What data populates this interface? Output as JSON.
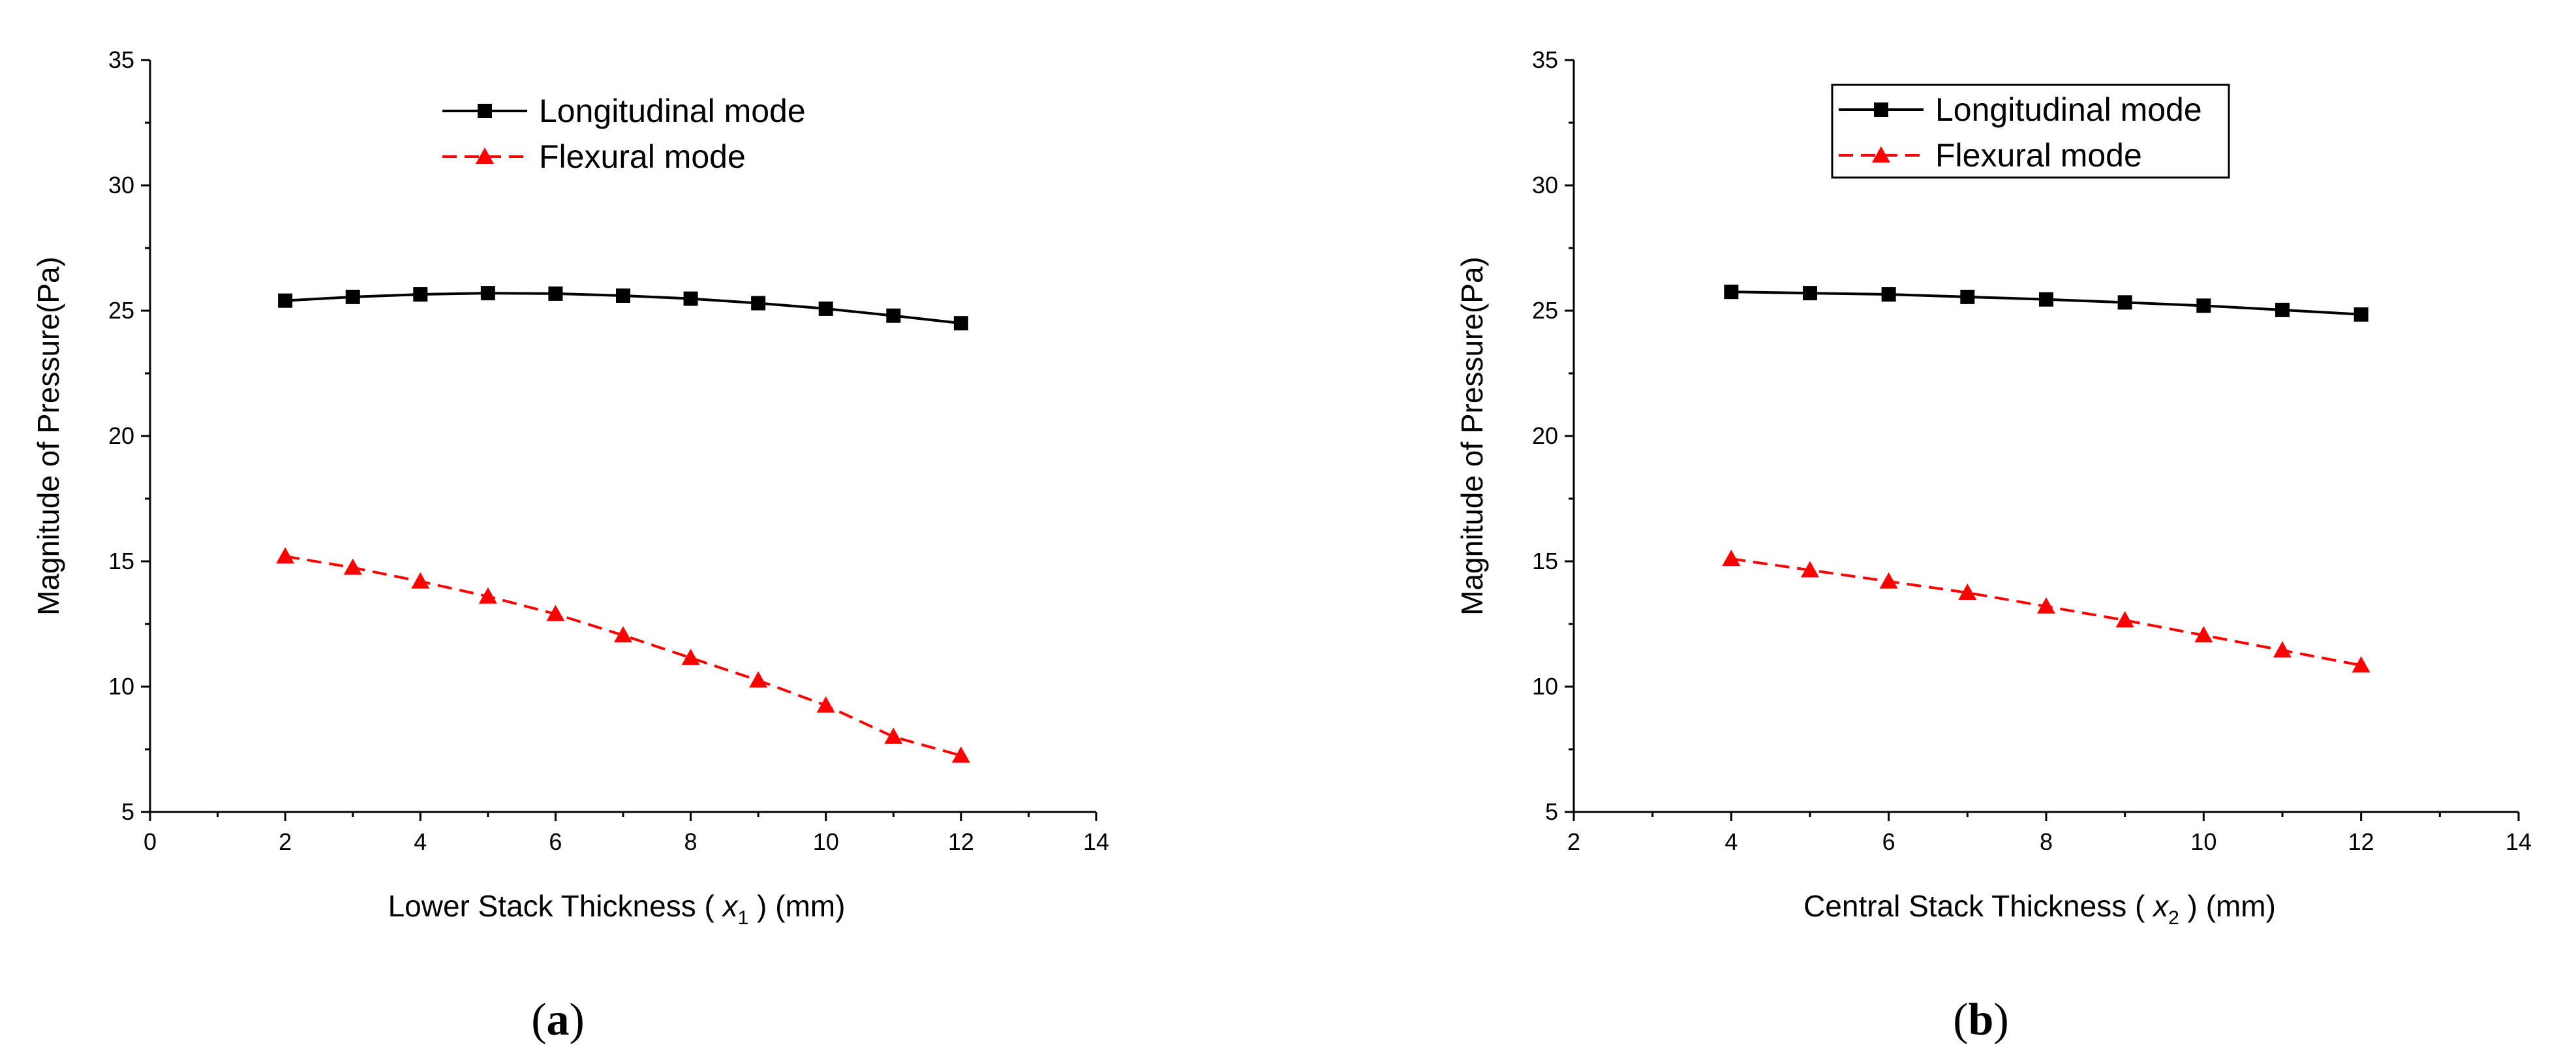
{
  "chart_data": [
    {
      "type": "line",
      "panel_label": "(a)",
      "panel_letter": "a",
      "xlabel_prefix": "Lower Stack Thickness ( ",
      "xlabel_var": "x",
      "xlabel_sub": "1",
      "xlabel_suffix": " ) (mm)",
      "ylabel": "Magnitude of Pressure(Pa)",
      "xlim": [
        0,
        14
      ],
      "ylim": [
        5,
        35
      ],
      "xticks": [
        0,
        2,
        4,
        6,
        8,
        10,
        12,
        14
      ],
      "yticks": [
        5,
        10,
        15,
        20,
        25,
        30,
        35
      ],
      "grid": false,
      "legend_position": "top-center",
      "legend_boxed": false,
      "series": [
        {
          "name": "Longitudinal mode",
          "color": "#000000",
          "marker": "square",
          "line_style": "solid",
          "x": [
            2,
            3,
            4,
            5,
            6,
            7,
            8,
            9,
            10,
            11,
            12
          ],
          "y": [
            25.4,
            25.55,
            25.65,
            25.7,
            25.68,
            25.6,
            25.48,
            25.3,
            25.08,
            24.8,
            24.5
          ]
        },
        {
          "name": "Flexural mode",
          "color": "#ff0000",
          "marker": "triangle",
          "line_style": "dashed",
          "x": [
            2,
            3,
            4,
            5,
            6,
            7,
            8,
            9,
            10,
            11,
            12
          ],
          "y": [
            15.2,
            14.75,
            14.2,
            13.6,
            12.9,
            12.05,
            11.15,
            10.25,
            9.25,
            8.0,
            7.25
          ]
        }
      ]
    },
    {
      "type": "line",
      "panel_label": "(b)",
      "panel_letter": "b",
      "xlabel_prefix": "Central Stack Thickness ( ",
      "xlabel_var": "x",
      "xlabel_sub": "2",
      "xlabel_suffix": " ) (mm)",
      "ylabel": "Magnitude of Pressure(Pa)",
      "xlim": [
        2,
        14
      ],
      "ylim": [
        5,
        35
      ],
      "xticks": [
        2,
        4,
        6,
        8,
        10,
        12,
        14
      ],
      "yticks": [
        5,
        10,
        15,
        20,
        25,
        30,
        35
      ],
      "grid": false,
      "legend_position": "top-left",
      "legend_boxed": true,
      "series": [
        {
          "name": "Longitudinal mode",
          "color": "#000000",
          "marker": "square",
          "line_style": "solid",
          "x": [
            4,
            5,
            6,
            7,
            8,
            9,
            10,
            11,
            12
          ],
          "y": [
            25.75,
            25.7,
            25.65,
            25.55,
            25.45,
            25.33,
            25.2,
            25.03,
            24.85
          ]
        },
        {
          "name": "Flexural mode",
          "color": "#ff0000",
          "marker": "triangle",
          "line_style": "dashed",
          "x": [
            4,
            5,
            6,
            7,
            8,
            9,
            10,
            11,
            12
          ],
          "y": [
            15.1,
            14.65,
            14.2,
            13.75,
            13.2,
            12.65,
            12.05,
            11.45,
            10.85
          ]
        }
      ]
    }
  ]
}
